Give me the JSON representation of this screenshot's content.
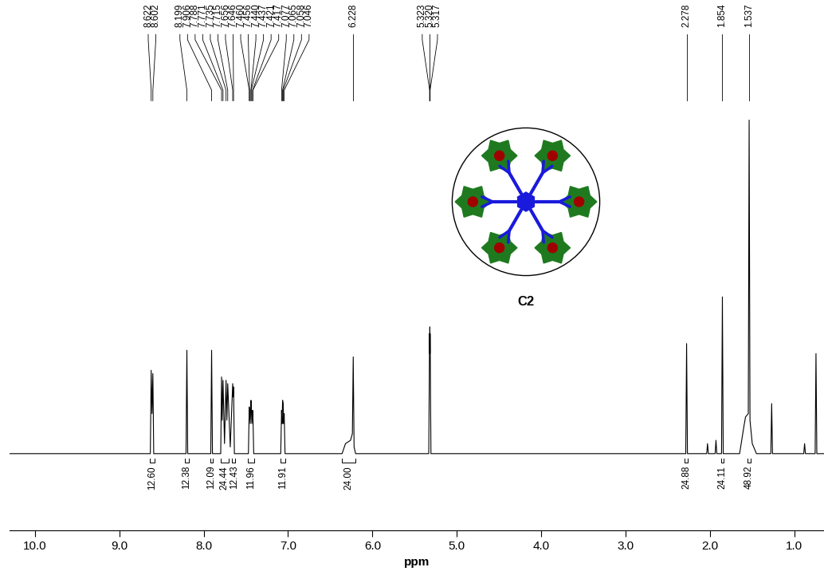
{
  "chart_data": {
    "type": "line",
    "x_label": "ppm",
    "xlim": [
      10.3,
      0.65
    ],
    "xticks": [
      {
        "value": 10.0,
        "label": "10.0"
      },
      {
        "value": 9.0,
        "label": "9.0"
      },
      {
        "value": 8.0,
        "label": "8.0"
      },
      {
        "value": 7.0,
        "label": "7.0"
      },
      {
        "value": 6.0,
        "label": "6.0"
      },
      {
        "value": 5.0,
        "label": "5.0"
      },
      {
        "value": 4.0,
        "label": "4.0"
      },
      {
        "value": 3.0,
        "label": "3.0"
      },
      {
        "value": 2.0,
        "label": "2.0"
      },
      {
        "value": 1.0,
        "label": "1.0"
      }
    ],
    "ylim": [
      -23,
      136
    ],
    "tick_labels": "x",
    "color": "#000000",
    "x": [
      10.3,
      8.632,
      8.622,
      8.612,
      8.602,
      8.592,
      8.209,
      8.199,
      8.189,
      7.916,
      7.906,
      7.896,
      7.798,
      7.788,
      7.78,
      7.771,
      7.753,
      7.735,
      7.725,
      7.715,
      7.685,
      7.656,
      7.651,
      7.646,
      7.636,
      7.47,
      7.46,
      7.456,
      7.448,
      7.44,
      7.437,
      7.429,
      7.421,
      7.417,
      7.407,
      7.087,
      7.077,
      7.071,
      7.065,
      7.058,
      7.052,
      7.046,
      7.036,
      6.36,
      6.32,
      6.26,
      6.238,
      6.228,
      6.218,
      6.2,
      5.333,
      5.323,
      5.3215,
      5.32,
      5.3185,
      5.317,
      5.307,
      2.288,
      2.278,
      2.268,
      2.04,
      2.03,
      2.02,
      1.94,
      1.93,
      1.92,
      1.864,
      1.854,
      1.844,
      1.65,
      1.6,
      1.58,
      1.547,
      1.537,
      1.527,
      1.5,
      1.45,
      1.28,
      1.27,
      1.26,
      0.89,
      0.88,
      0.87,
      0.755,
      0.745,
      0.735,
      0.65
    ],
    "values": [
      0,
      0,
      25,
      12,
      24,
      0,
      0,
      31,
      0,
      0,
      31,
      0,
      0,
      23,
      10,
      22,
      3,
      22,
      10,
      21,
      2,
      21,
      17,
      20,
      0,
      0,
      14,
      13,
      9,
      16,
      15,
      9,
      13,
      12,
      0,
      0,
      13,
      9,
      16,
      15,
      9,
      12,
      0,
      0,
      3,
      4,
      6,
      29,
      2,
      0,
      0,
      36,
      30,
      38,
      30,
      36,
      0,
      0,
      33,
      0,
      0,
      3,
      0,
      0,
      4,
      0,
      0,
      47,
      0,
      0,
      8,
      11,
      12,
      100,
      10,
      3,
      0,
      0,
      15,
      0,
      0,
      3,
      0,
      0,
      30,
      0,
      0
    ],
    "peak_labels": [
      "8.622",
      "8.602",
      "8.199",
      "7.906",
      "7.788",
      "7.771",
      "7.735",
      "7.715",
      "7.656",
      "7.646",
      "7.460",
      "7.456",
      "7.440",
      "7.437",
      "7.421",
      "7.417",
      "7.077",
      "7.065",
      "7.058",
      "7.046",
      "6.228",
      "5.323",
      "5.320",
      "5.317",
      "2.278",
      "1.854",
      "1.537"
    ],
    "integrals": [
      {
        "label": "12.60",
        "from": 8.64,
        "to": 8.58
      },
      {
        "label": "12.38",
        "from": 8.22,
        "to": 8.18
      },
      {
        "label": "12.09",
        "from": 7.925,
        "to": 7.89
      },
      {
        "label": "24.44",
        "from": 7.8,
        "to": 7.7
      },
      {
        "label": "12.43",
        "from": 7.67,
        "to": 7.63
      },
      {
        "label": "11.96",
        "from": 7.48,
        "to": 7.4
      },
      {
        "label": "11.91",
        "from": 7.09,
        "to": 7.03
      },
      {
        "label": "24.00",
        "from": 6.36,
        "to": 6.2
      },
      {
        "label": "24.88",
        "from": 2.3,
        "to": 2.26
      },
      {
        "label": "24.11",
        "from": 1.87,
        "to": 1.84
      },
      {
        "label": "48.92",
        "from": 1.56,
        "to": 1.52
      }
    ],
    "annotations": [
      "C2"
    ]
  }
}
